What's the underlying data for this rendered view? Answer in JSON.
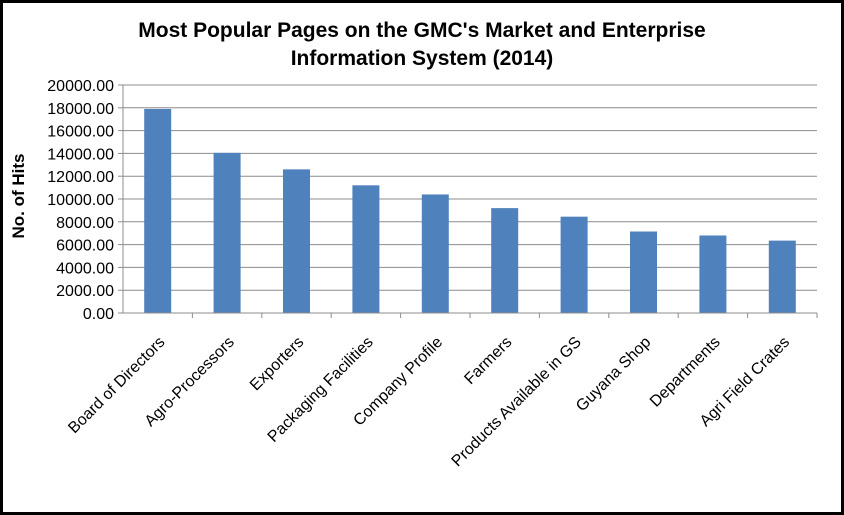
{
  "chart_data": {
    "type": "bar",
    "title_line1": "Most Popular Pages on the GMC's Market and Enterprise",
    "title_line2": "Information System (2014)",
    "xlabel": "",
    "ylabel": "No. of Hits",
    "ylim": [
      0,
      20000
    ],
    "ytick_labels": [
      "0.00",
      "2000.00",
      "4000.00",
      "6000.00",
      "8000.00",
      "10000.00",
      "12000.00",
      "14000.00",
      "16000.00",
      "18000.00",
      "20000.00"
    ],
    "categories": [
      "Board of Directors",
      "Agro-Processors",
      "Exporters",
      "Packaging Facilities",
      "Company Profile",
      "Farmers",
      "Products Available in GS",
      "Guyana Shop",
      "Departments",
      "Agri Field Crates"
    ],
    "values": [
      17900,
      14050,
      12600,
      11200,
      10400,
      9200,
      8450,
      7150,
      6800,
      6350
    ],
    "grid": true,
    "legend": "none",
    "bar_color": "#4f81bd"
  }
}
